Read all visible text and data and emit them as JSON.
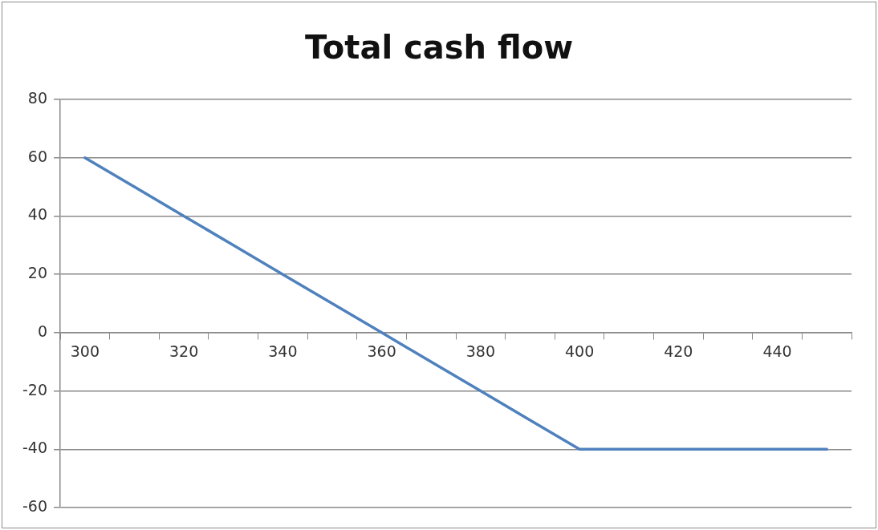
{
  "chart_data": {
    "type": "line",
    "title": "Total cash flow",
    "categories": [
      "300",
      null,
      "320",
      null,
      "340",
      null,
      "360",
      null,
      "380",
      null,
      "400",
      null,
      "420",
      null,
      "440",
      null
    ],
    "series": [
      {
        "color": "#4f81bd",
        "values": [
          60,
          50,
          40,
          30,
          20,
          10,
          0,
          -10,
          -20,
          -30,
          -40,
          -40,
          -40,
          -40,
          -40,
          -40
        ]
      }
    ],
    "ylim": [
      -60,
      80
    ],
    "yticks": [
      -60,
      -40,
      -20,
      0,
      20,
      40,
      60,
      80
    ],
    "grid": "y",
    "legend": false,
    "marker": "none",
    "line_style": "solid"
  }
}
